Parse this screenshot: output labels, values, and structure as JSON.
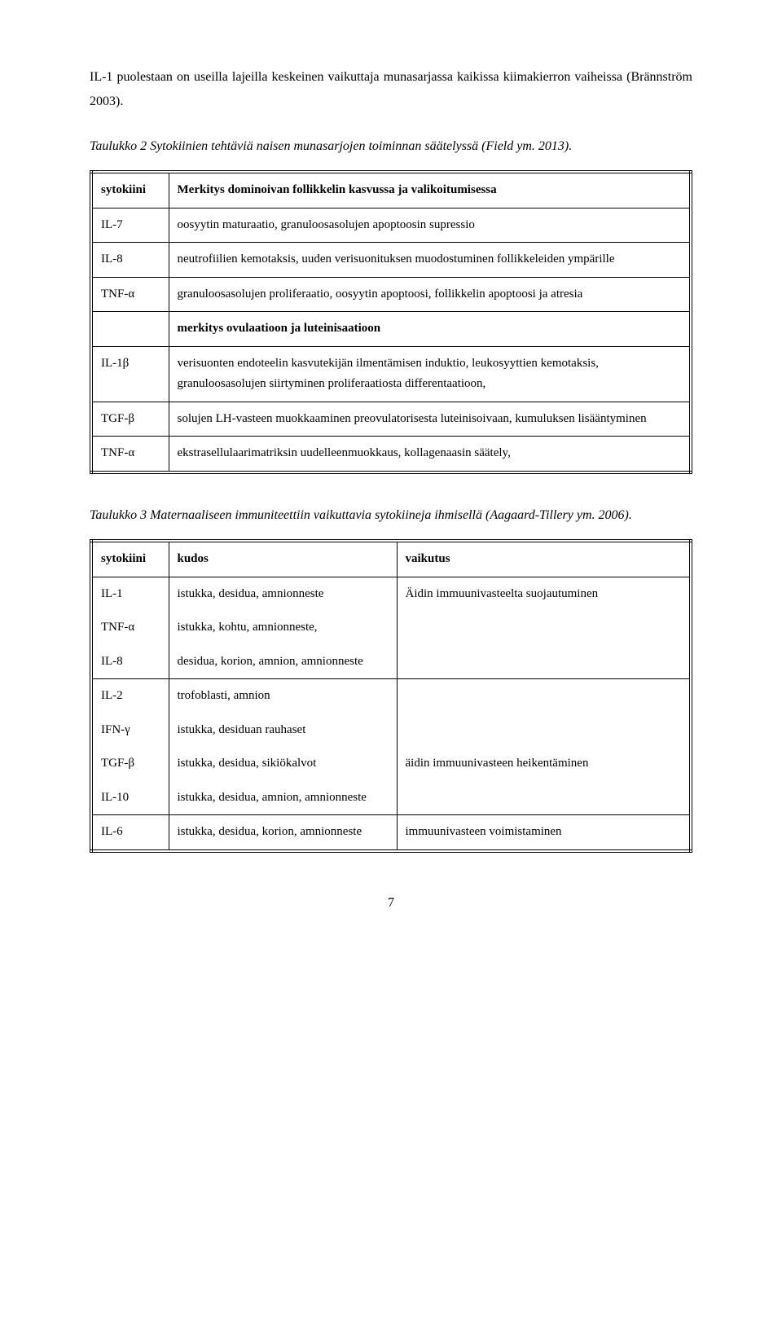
{
  "intro_para": "IL-1 puolestaan on useilla lajeilla keskeinen vaikuttaja munasarjassa kaikissa kiimakierron vaiheissa (Brännström 2003).",
  "table2": {
    "caption": "Taulukko 2 Sytokiinien tehtäviä naisen munasarjojen toiminnan säätelyssä (Field ym. 2013).",
    "hdr_col1": "sytokiini",
    "hdr_col2": "Merkitys dominoivan follikkelin kasvussa ja valikoitumisessa",
    "row1_c1": "IL-7",
    "row1_c2": "oosyytin maturaatio, granuloosasolujen apoptoosin supressio",
    "row2_c1": "IL-8",
    "row2_c2": "neutrofiilien kemotaksis, uuden verisuonituksen muodostuminen follikkeleiden ympärille",
    "row3_c1": "TNF-α",
    "row3_c2": "granuloosasolujen proliferaatio, oosyytin apoptoosi, follikkelin apoptoosi ja atresia",
    "sec2_hdr": "merkitys ovulaatioon ja luteinisaatioon",
    "row4_c1": "IL-1β",
    "row4_c2": "verisuonten endoteelin kasvutekijän ilmentämisen induktio, leukosyyttien kemotaksis, granuloosasolujen siirtyminen proliferaatiosta differentaatioon,",
    "row5_c1": "TGF-β",
    "row5_c2": "solujen LH-vasteen muokkaaminen preovulatorisesta luteinisoivaan, kumuluksen lisääntyminen",
    "row6_c1": "TNF-α",
    "row6_c2": "ekstrasellulaarimatriksin uudelleenmuokkaus, kollagenaasin säätely,"
  },
  "table3": {
    "caption": "Taulukko 3 Maternaaliseen immuniteettiin vaikuttavia sytokiineja ihmisellä (Aagaard-Tillery ym. 2006).",
    "hdr_c1": "sytokiini",
    "hdr_c2": "kudos",
    "hdr_c3": "vaikutus",
    "g1_r1_c1": "IL-1",
    "g1_r1_c2": "istukka, desidua, amnionneste",
    "g1_vaik": "Äidin immuunivasteelta suojautuminen",
    "g1_r2_c1": "TNF-α",
    "g1_r2_c2": "istukka, kohtu, amnionneste,",
    "g1_r3_c1": "IL-8",
    "g1_r3_c2": "desidua, korion, amnion, amnionneste",
    "g2_r1_c1": "IL-2",
    "g2_r1_c2": "trofoblasti, amnion",
    "g2_r2_c1": "IFN-γ",
    "g2_r2_c2": "istukka, desiduan rauhaset",
    "g2_r3_c1": "TGF-β",
    "g2_r3_c2": "istukka, desidua, sikiökalvot",
    "g2_vaik": "äidin immuunivasteen heikentäminen",
    "g2_r4_c1": "IL-10",
    "g2_r4_c2": "istukka, desidua, amnion, amnionneste",
    "g3_r1_c1": "IL-6",
    "g3_r1_c2": "istukka, desidua, korion, amnionneste",
    "g3_vaik": "immuunivasteen voimistaminen"
  },
  "page_number": "7"
}
